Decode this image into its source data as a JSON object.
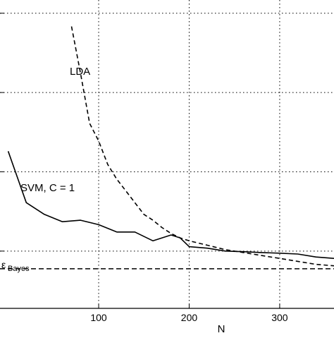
{
  "chart_data": {
    "type": "line",
    "xlabel": "N",
    "ylabel": "",
    "xticks": [
      100,
      200,
      300
    ],
    "xlim": [
      -9,
      360
    ],
    "ylim": [
      0,
      10.5
    ],
    "grid": true,
    "series": [
      {
        "name": "SVM, C = 1",
        "style": "solid",
        "x": [
          0,
          20,
          40,
          60,
          80,
          100,
          120,
          140,
          160,
          180,
          190,
          200,
          220,
          240,
          260,
          280,
          300,
          320,
          340,
          360
        ],
        "y": [
          5.35,
          3.6,
          3.2,
          2.95,
          3.0,
          2.85,
          2.6,
          2.6,
          2.3,
          2.5,
          2.4,
          2.1,
          2.05,
          1.95,
          1.93,
          1.9,
          1.88,
          1.85,
          1.75,
          1.7
        ]
      },
      {
        "name": "LDA",
        "style": "dashed",
        "x": [
          70,
          80,
          90,
          100,
          110,
          120,
          130,
          140,
          150,
          160,
          170,
          180,
          190,
          200,
          220,
          240,
          260,
          280,
          300,
          320,
          340,
          360
        ],
        "y": [
          9.6,
          8.0,
          6.3,
          5.7,
          4.9,
          4.4,
          4.0,
          3.6,
          3.2,
          3.0,
          2.75,
          2.55,
          2.4,
          2.3,
          2.15,
          2.0,
          1.9,
          1.8,
          1.7,
          1.6,
          1.5,
          1.45
        ]
      }
    ],
    "reference": {
      "name": "ε",
      "subscript": "Bayes",
      "y": 1.35,
      "style": "dashed"
    },
    "annotations": [
      {
        "text": "LDA",
        "series": "LDA"
      },
      {
        "text": "SVM, C = 1",
        "series": "SVM, C = 1"
      }
    ],
    "ytick_values": [
      1.95,
      4.65,
      7.35,
      10.05
    ]
  }
}
